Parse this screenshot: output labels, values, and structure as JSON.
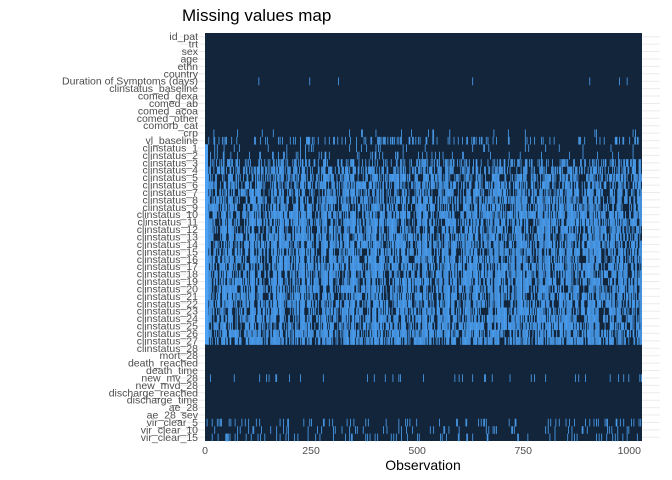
{
  "chart_data": {
    "type": "heatmap",
    "title": "Missing values map",
    "xlabel": "Observation",
    "ylabel": "",
    "xlim": [
      0,
      1030
    ],
    "xticks": [
      0,
      250,
      500,
      750,
      1000
    ],
    "variables": [
      "id_pat",
      "trt",
      "sex",
      "age",
      "ethn",
      "country",
      "Duration of Symptoms (days)",
      "clinstatus_baseline",
      "comed_dexa",
      "comed_ab",
      "comed_acoa",
      "comed_other",
      "comorb_cat",
      "crp",
      "vl_baseline",
      "clinstatus_1",
      "clinstatus_2",
      "clinstatus_3",
      "clinstatus_4",
      "clinstatus_5",
      "clinstatus_6",
      "clinstatus_7",
      "clinstatus_8",
      "clinstatus_9",
      "clinstatus_10",
      "clinstatus_11",
      "clinstatus_12",
      "clinstatus_13",
      "clinstatus_14",
      "clinstatus_15",
      "clinstatus_16",
      "clinstatus_17",
      "clinstatus_18",
      "clinstatus_19",
      "clinstatus_20",
      "clinstatus_21",
      "clinstatus_22",
      "clinstatus_23",
      "clinstatus_24",
      "clinstatus_25",
      "clinstatus_26",
      "clinstatus_27",
      "clinstatus_28",
      "mort_28",
      "death_reached",
      "death_time",
      "new_mv_28",
      "new_mvd_28",
      "discharge_reached",
      "discharge_time",
      "ae_28",
      "ae_28_sev",
      "vir_clear_5",
      "vir_clear_10",
      "vir_clear_15"
    ],
    "missing_rate": [
      0,
      0,
      0,
      0,
      0,
      0,
      0.008,
      0,
      0,
      0,
      0,
      0,
      0,
      0.03,
      0.22,
      0.05,
      0.12,
      0.45,
      0.55,
      0.6,
      0.62,
      0.64,
      0.65,
      0.66,
      0.68,
      0.68,
      0.68,
      0.68,
      0.7,
      0.7,
      0.7,
      0.7,
      0.7,
      0.7,
      0.7,
      0.7,
      0.7,
      0.7,
      0.7,
      0.7,
      0.7,
      0.7,
      0,
      0,
      0,
      0,
      0.08,
      0,
      0,
      0,
      0,
      0,
      0.12,
      0.12,
      0.12
    ],
    "colors": {
      "present": "#13253a",
      "missing": "#4da3f7"
    },
    "grid": true
  }
}
